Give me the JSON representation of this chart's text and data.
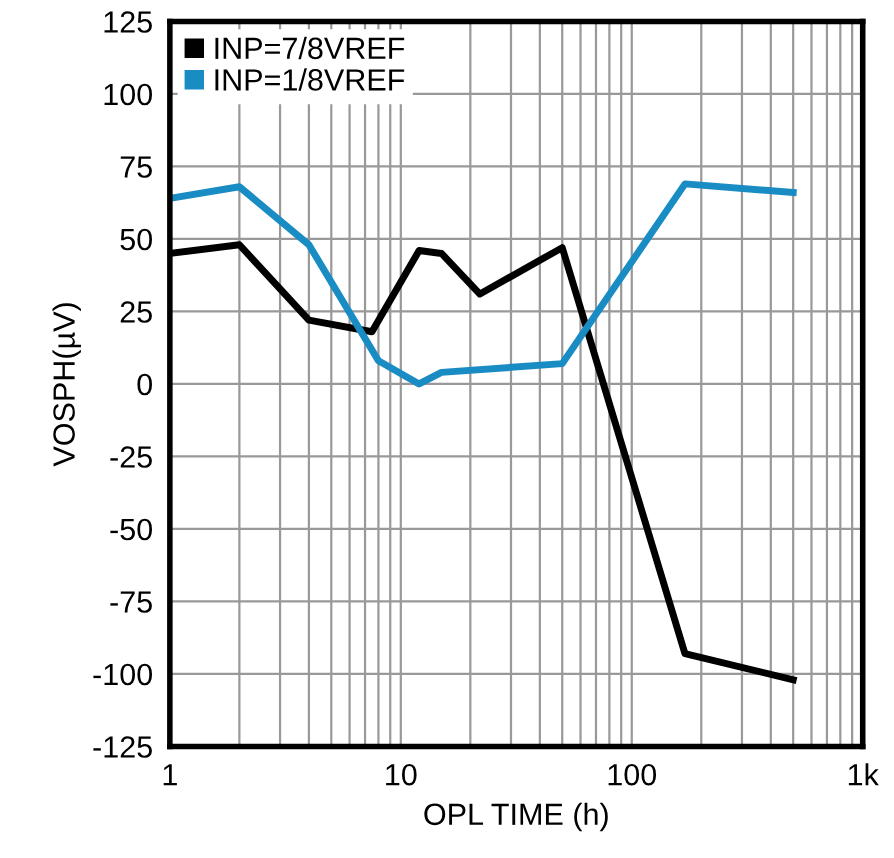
{
  "chart_data": {
    "type": "line",
    "xlabel": "OPL TIME (h)",
    "ylabel": "VOSPH(µV)",
    "log": "x",
    "xlim": [
      1,
      1000
    ],
    "xticks": [
      1,
      10,
      100,
      {
        "value": 1000,
        "label": "1k"
      }
    ],
    "ylim": [
      -125,
      125
    ],
    "yticks": [
      -125,
      -100,
      -75,
      -50,
      -25,
      0,
      25,
      50,
      75,
      100,
      125
    ],
    "grid": true,
    "legend": "top left",
    "marker": "none",
    "line_style": "solid",
    "series": [
      {
        "name": "INP=7/8VREF",
        "color": "#000000",
        "x": [
          1,
          2,
          4,
          7.5,
          12,
          15,
          22,
          50,
          170,
          500
        ],
        "values": [
          45,
          48,
          22,
          18,
          46,
          45,
          31,
          47,
          -93,
          -102
        ]
      },
      {
        "name": "INP=1/8VREF",
        "color": "#1a8cc4",
        "x": [
          1,
          2,
          4,
          8,
          12,
          15,
          50,
          170,
          500
        ],
        "values": [
          64,
          68,
          48,
          8,
          0,
          4,
          7,
          69,
          66
        ]
      }
    ]
  }
}
